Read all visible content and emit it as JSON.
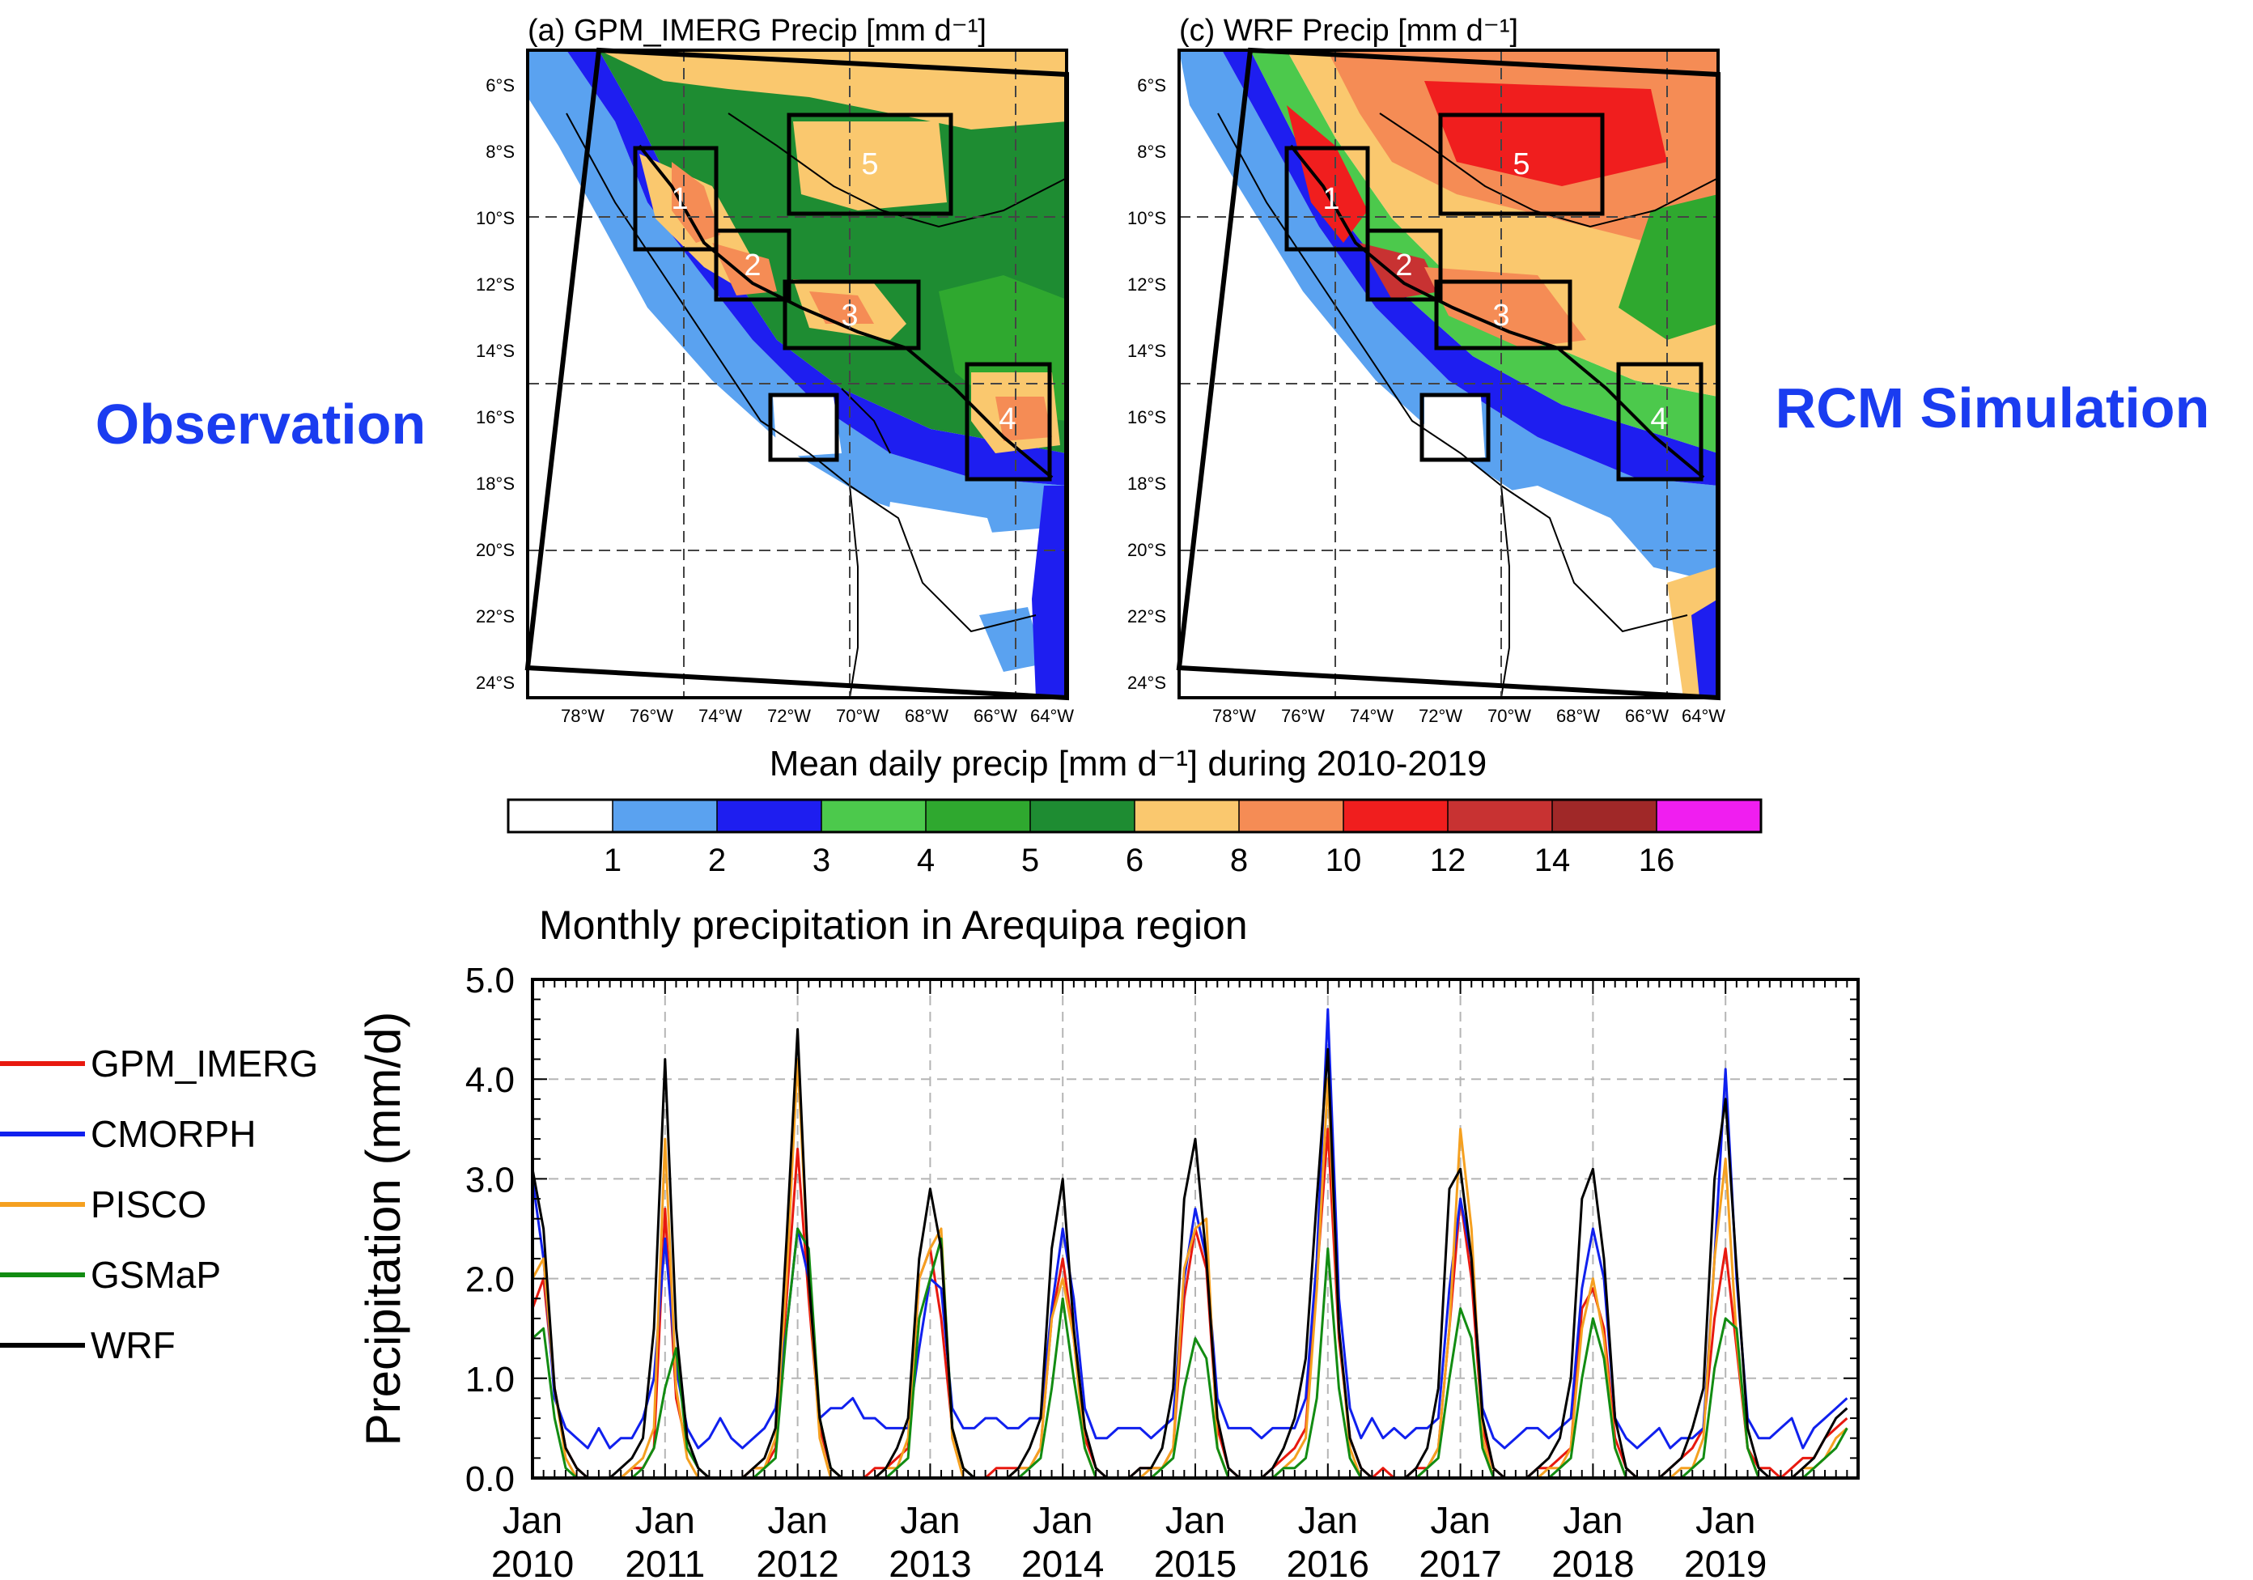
{
  "labels": {
    "observation": "Observation",
    "rcm": "RCM Simulation"
  },
  "maps": {
    "panel_a_title": "(a) GPM_IMERG Precip [mm d⁻¹]",
    "panel_c_title": "(c) WRF Precip [mm d⁻¹]",
    "lat_ticks": [
      "6°S",
      "8°S",
      "10°S",
      "12°S",
      "14°S",
      "16°S",
      "18°S",
      "20°S",
      "22°S",
      "24°S"
    ],
    "lon_ticks": [
      "78°W",
      "76°W",
      "74°W",
      "72°W",
      "70°W",
      "68°W",
      "66°W",
      "64°W"
    ],
    "box_labels": [
      "1",
      "2",
      "3",
      "4",
      "5"
    ]
  },
  "colorbar": {
    "title": "Mean daily precip [mm d⁻¹] during 2010-2019",
    "colors": [
      "#ffffff",
      "#5aa2f0",
      "#1e1ef0",
      "#4cc94c",
      "#2fa82f",
      "#1e8c32",
      "#fac86e",
      "#f58c55",
      "#f01e1e",
      "#c83232",
      "#a02828",
      "#f01ef0"
    ],
    "tick_labels": [
      "1",
      "2",
      "3",
      "4",
      "5",
      "6",
      "8",
      "10",
      "12",
      "14",
      "16"
    ]
  },
  "chart_data": {
    "type": "line",
    "title": "Monthly precipitation in Arequipa region",
    "ylabel": "Precipitation (mm/d)",
    "xlabel": "",
    "ylim": [
      0,
      5
    ],
    "yticks": [
      "0.0",
      "1.0",
      "2.0",
      "3.0",
      "4.0",
      "5.0"
    ],
    "xtick_months": [
      "Jan",
      "Jan",
      "Jan",
      "Jan",
      "Jan",
      "Jan",
      "Jan",
      "Jan",
      "Jan",
      "Jan"
    ],
    "xtick_years": [
      "2010",
      "2011",
      "2012",
      "2013",
      "2014",
      "2015",
      "2016",
      "2017",
      "2018",
      "2019"
    ],
    "x_start": "2010-01",
    "x_end": "2019-12",
    "grid": true,
    "legend_position": "left",
    "series": [
      {
        "name": "GPM_IMERG",
        "color": "#e8190f",
        "values": [
          1.7,
          2.0,
          0.9,
          0.3,
          0.1,
          0.0,
          0.0,
          0.0,
          0.0,
          0.1,
          0.1,
          0.3,
          2.7,
          0.8,
          0.3,
          0.1,
          0.0,
          0.0,
          0.0,
          0.0,
          0.1,
          0.1,
          0.3,
          1.8,
          3.3,
          1.8,
          0.5,
          0.1,
          0.0,
          0.0,
          0.0,
          0.1,
          0.1,
          0.2,
          0.3,
          2.0,
          2.3,
          1.6,
          0.5,
          0.1,
          0.0,
          0.0,
          0.1,
          0.1,
          0.1,
          0.1,
          0.3,
          1.6,
          2.2,
          1.4,
          0.4,
          0.1,
          0.0,
          0.0,
          0.0,
          0.1,
          0.1,
          0.1,
          0.3,
          1.8,
          2.5,
          2.1,
          0.5,
          0.1,
          0.0,
          0.0,
          0.0,
          0.1,
          0.2,
          0.3,
          0.5,
          2.0,
          3.5,
          1.4,
          0.4,
          0.1,
          0.0,
          0.1,
          0.0,
          0.0,
          0.1,
          0.1,
          0.3,
          1.5,
          2.8,
          2.0,
          0.5,
          0.1,
          0.0,
          0.0,
          0.0,
          0.1,
          0.1,
          0.2,
          0.3,
          1.7,
          1.9,
          1.5,
          0.4,
          0.1,
          0.0,
          0.0,
          0.0,
          0.1,
          0.2,
          0.3,
          0.5,
          1.6,
          2.3,
          1.3,
          0.3,
          0.1,
          0.1,
          0.0,
          0.1,
          0.2,
          0.2,
          0.4,
          0.5,
          0.6
        ]
      },
      {
        "name": "CMORPH",
        "color": "#1020ee",
        "values": [
          3.0,
          2.2,
          0.8,
          0.5,
          0.4,
          0.3,
          0.5,
          0.3,
          0.4,
          0.4,
          0.6,
          1.0,
          2.4,
          1.1,
          0.5,
          0.3,
          0.4,
          0.6,
          0.4,
          0.3,
          0.4,
          0.5,
          0.7,
          1.5,
          2.5,
          2.0,
          0.6,
          0.7,
          0.7,
          0.8,
          0.6,
          0.6,
          0.5,
          0.5,
          0.5,
          1.3,
          2.0,
          1.9,
          0.7,
          0.5,
          0.5,
          0.6,
          0.6,
          0.5,
          0.5,
          0.6,
          0.6,
          1.7,
          2.5,
          1.8,
          0.7,
          0.4,
          0.4,
          0.5,
          0.5,
          0.5,
          0.4,
          0.5,
          0.6,
          2.0,
          2.7,
          2.2,
          0.8,
          0.5,
          0.5,
          0.5,
          0.4,
          0.5,
          0.5,
          0.5,
          0.8,
          2.2,
          4.7,
          1.8,
          0.7,
          0.4,
          0.6,
          0.4,
          0.5,
          0.4,
          0.5,
          0.5,
          0.6,
          1.9,
          2.8,
          2.2,
          0.7,
          0.4,
          0.3,
          0.4,
          0.5,
          0.5,
          0.4,
          0.5,
          0.6,
          1.9,
          2.5,
          2.0,
          0.6,
          0.4,
          0.3,
          0.4,
          0.5,
          0.3,
          0.4,
          0.4,
          0.5,
          2.2,
          4.1,
          2.0,
          0.6,
          0.4,
          0.4,
          0.5,
          0.6,
          0.3,
          0.5,
          0.6,
          0.7,
          0.8
        ]
      },
      {
        "name": "PISCO",
        "color": "#f5a020",
        "values": [
          2.0,
          2.2,
          0.9,
          0.2,
          0.0,
          0.0,
          0.0,
          0.0,
          0.0,
          0.1,
          0.2,
          0.5,
          3.4,
          0.9,
          0.2,
          0.0,
          0.0,
          0.0,
          0.0,
          0.0,
          0.1,
          0.1,
          0.4,
          2.0,
          4.2,
          2.0,
          0.4,
          0.0,
          0.0,
          0.0,
          0.0,
          0.0,
          0.1,
          0.1,
          0.4,
          2.0,
          2.3,
          2.5,
          0.4,
          0.0,
          0.0,
          0.0,
          0.0,
          0.0,
          0.1,
          0.1,
          0.3,
          1.6,
          2.0,
          1.4,
          0.3,
          0.0,
          0.0,
          0.0,
          0.0,
          0.0,
          0.1,
          0.1,
          0.3,
          2.1,
          2.5,
          2.6,
          0.3,
          0.0,
          0.0,
          0.0,
          0.0,
          0.0,
          0.1,
          0.2,
          0.4,
          1.9,
          4.0,
          1.5,
          0.3,
          0.0,
          0.0,
          0.0,
          0.0,
          0.0,
          0.0,
          0.1,
          0.3,
          1.5,
          3.5,
          2.5,
          0.4,
          0.0,
          0.0,
          0.0,
          0.0,
          0.0,
          0.1,
          0.1,
          0.3,
          1.5,
          2.0,
          1.4,
          0.3,
          0.0,
          0.0,
          0.0,
          0.0,
          0.0,
          0.1,
          0.1,
          0.4,
          2.2,
          3.2,
          1.4,
          0.3,
          0.0,
          0.0,
          0.0,
          0.0,
          0.1,
          0.1,
          0.2,
          0.4,
          0.5
        ]
      },
      {
        "name": "GSMaP",
        "color": "#128c12",
        "values": [
          1.4,
          1.5,
          0.6,
          0.1,
          0.0,
          0.0,
          0.0,
          0.0,
          0.0,
          0.0,
          0.1,
          0.3,
          0.9,
          1.3,
          0.3,
          0.1,
          0.0,
          0.0,
          0.0,
          0.0,
          0.0,
          0.1,
          0.2,
          1.5,
          2.5,
          2.3,
          0.6,
          0.1,
          0.0,
          0.0,
          0.0,
          0.0,
          0.0,
          0.1,
          0.2,
          1.6,
          2.0,
          2.4,
          0.5,
          0.1,
          0.0,
          0.0,
          0.0,
          0.0,
          0.0,
          0.1,
          0.2,
          0.9,
          1.8,
          1.0,
          0.3,
          0.0,
          0.0,
          0.0,
          0.0,
          0.0,
          0.0,
          0.1,
          0.2,
          0.9,
          1.4,
          1.2,
          0.3,
          0.0,
          0.0,
          0.0,
          0.0,
          0.0,
          0.1,
          0.1,
          0.2,
          0.8,
          2.3,
          0.9,
          0.2,
          0.0,
          0.0,
          0.0,
          0.0,
          0.0,
          0.0,
          0.1,
          0.2,
          1.0,
          1.7,
          1.4,
          0.3,
          0.0,
          0.0,
          0.0,
          0.0,
          0.0,
          0.0,
          0.1,
          0.2,
          1.0,
          1.6,
          1.2,
          0.3,
          0.0,
          0.0,
          0.0,
          0.0,
          0.0,
          0.0,
          0.1,
          0.2,
          1.1,
          1.6,
          1.5,
          0.3,
          0.0,
          0.0,
          0.0,
          0.0,
          0.0,
          0.1,
          0.2,
          0.3,
          0.5
        ]
      },
      {
        "name": "WRF",
        "color": "#000000",
        "values": [
          3.1,
          2.5,
          0.9,
          0.3,
          0.1,
          0.0,
          0.0,
          0.0,
          0.1,
          0.2,
          0.4,
          1.5,
          4.2,
          1.5,
          0.4,
          0.1,
          0.0,
          0.0,
          0.0,
          0.0,
          0.1,
          0.2,
          0.5,
          2.4,
          4.5,
          2.0,
          0.6,
          0.1,
          0.0,
          0.0,
          0.0,
          0.0,
          0.1,
          0.3,
          0.6,
          2.2,
          2.9,
          2.3,
          0.5,
          0.1,
          0.0,
          0.0,
          0.0,
          0.0,
          0.1,
          0.3,
          0.6,
          2.3,
          3.0,
          1.5,
          0.5,
          0.1,
          0.0,
          0.0,
          0.0,
          0.1,
          0.1,
          0.3,
          0.9,
          2.8,
          3.4,
          2.2,
          0.6,
          0.1,
          0.0,
          0.0,
          0.0,
          0.1,
          0.3,
          0.6,
          1.2,
          2.8,
          4.3,
          1.5,
          0.4,
          0.1,
          0.0,
          0.0,
          0.0,
          0.0,
          0.1,
          0.3,
          0.9,
          2.9,
          3.1,
          2.2,
          0.6,
          0.1,
          0.0,
          0.0,
          0.0,
          0.1,
          0.2,
          0.4,
          1.0,
          2.8,
          3.1,
          2.2,
          0.6,
          0.1,
          0.0,
          0.0,
          0.0,
          0.1,
          0.2,
          0.5,
          0.9,
          3.0,
          3.8,
          2.1,
          0.5,
          0.1,
          0.0,
          0.0,
          0.0,
          0.1,
          0.2,
          0.4,
          0.6,
          0.7
        ]
      }
    ]
  }
}
